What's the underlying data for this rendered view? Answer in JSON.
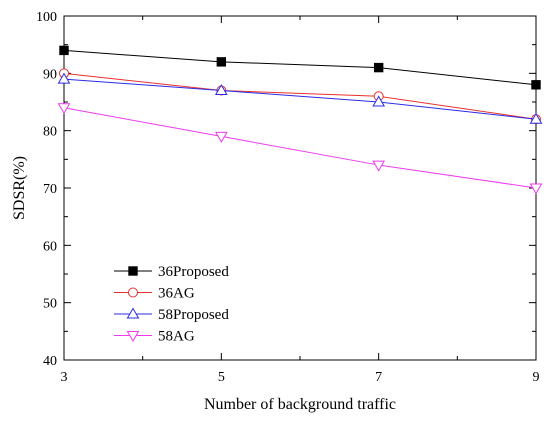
{
  "chart_data": {
    "type": "line",
    "title": "",
    "xlabel": "Number of background traffic",
    "ylabel": "SDSR(%)",
    "x": [
      3,
      5,
      7,
      9
    ],
    "xlim": [
      3,
      9
    ],
    "ylim": [
      40,
      100
    ],
    "x_ticks": [
      3,
      5,
      7,
      9
    ],
    "x_minor_ticks": [
      4,
      6,
      8
    ],
    "y_ticks": [
      40,
      50,
      60,
      70,
      80,
      90,
      100
    ],
    "grid": false,
    "legend_position": "bottom-left",
    "series": [
      {
        "name": "36Proposed",
        "values": [
          94,
          92,
          91,
          88
        ],
        "color": "#000000",
        "marker": "square-filled"
      },
      {
        "name": "36AG",
        "values": [
          90,
          87,
          86,
          82
        ],
        "color": "#e8312b",
        "marker": "circle-open"
      },
      {
        "name": "58Proposed",
        "values": [
          89,
          87,
          85,
          82
        ],
        "color": "#2b2be8",
        "marker": "triangle-up-open"
      },
      {
        "name": "58AG",
        "values": [
          84,
          79,
          74,
          70
        ],
        "color": "#ee3aee",
        "marker": "triangle-down-open"
      }
    ]
  }
}
